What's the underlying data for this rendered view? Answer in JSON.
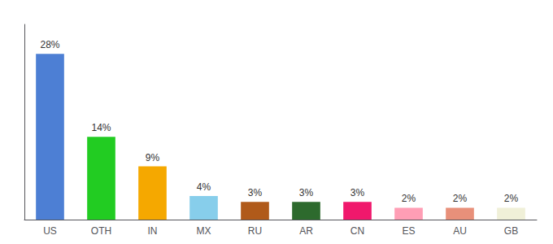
{
  "chart_data": {
    "type": "bar",
    "categories": [
      "US",
      "OTH",
      "IN",
      "MX",
      "RU",
      "AR",
      "CN",
      "ES",
      "AU",
      "GB"
    ],
    "values": [
      28,
      14,
      9,
      4,
      3,
      3,
      3,
      2,
      2,
      2
    ],
    "value_labels": [
      "28%",
      "14%",
      "9%",
      "4%",
      "3%",
      "3%",
      "3%",
      "2%",
      "2%",
      "2%"
    ],
    "colors": [
      "#4d7fd4",
      "#22cc22",
      "#f5a800",
      "#87ceeb",
      "#b05a1a",
      "#2d6a2d",
      "#f0186c",
      "#ff9eb5",
      "#e8907a",
      "#f0f0d8"
    ],
    "ylim": [
      0,
      33
    ],
    "data_labels": true,
    "tick_labels": "x",
    "grid": false
  }
}
